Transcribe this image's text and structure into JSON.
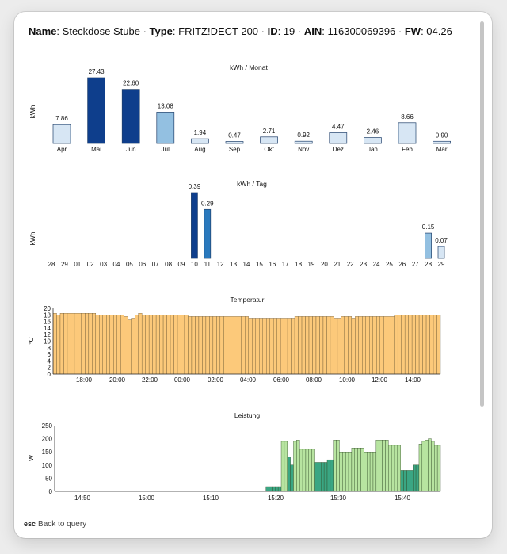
{
  "header": {
    "name_label": "Name",
    "name_value": "Steckdose Stube",
    "type_label": "Type",
    "type_value": "FRITZ!DECT 200",
    "id_label": "ID",
    "id_value": "19",
    "ain_label": "AIN",
    "ain_value": "116300069396",
    "fw_label": "FW",
    "fw_value": "04.26",
    "separator": " · "
  },
  "footer": {
    "key": "esc",
    "label": "Back to query"
  },
  "colors": {
    "blue_dark": "#0e3e8c",
    "blue_mid": "#2a79bd",
    "blue_light": "#93c0e1",
    "blue_pale": "#d7e6f4",
    "temp_fill": "#fcc97a",
    "power_light": "#b7e4a0",
    "power_dark": "#3aa683"
  },
  "chart_data": [
    {
      "type": "bar",
      "title": "kWh / Monat",
      "ylabel": "kWh",
      "categories": [
        "Apr",
        "Mai",
        "Jun",
        "Jul",
        "Aug",
        "Sep",
        "Okt",
        "Nov",
        "Dez",
        "Jan",
        "Feb",
        "Mär"
      ],
      "values": [
        7.86,
        27.43,
        22.6,
        13.08,
        1.94,
        0.47,
        2.71,
        0.92,
        4.47,
        2.46,
        8.66,
        0.9
      ],
      "value_labels": [
        "7.86",
        "27.43",
        "22.60",
        "13.08",
        "1.94",
        "0.47",
        "2.71",
        "0.92",
        "4.47",
        "2.46",
        "8.66",
        "0.90"
      ]
    },
    {
      "type": "bar",
      "title": "kWh / Tag",
      "ylabel": "kWh",
      "categories": [
        "28",
        "29",
        "01",
        "02",
        "03",
        "04",
        "05",
        "06",
        "07",
        "08",
        "09",
        "10",
        "11",
        "12",
        "13",
        "14",
        "15",
        "16",
        "17",
        "18",
        "19",
        "20",
        "21",
        "22",
        "23",
        "24",
        "25",
        "26",
        "27",
        "28",
        "29"
      ],
      "values": [
        0,
        0,
        0,
        0,
        0,
        0,
        0,
        0,
        0,
        0,
        0,
        0.39,
        0.29,
        0,
        0,
        0,
        0,
        0,
        0,
        0,
        0,
        0,
        0,
        0,
        0,
        0,
        0,
        0,
        0,
        0.15,
        0.07
      ],
      "labeled": {
        "11": "0.39",
        "12": "0.29",
        "29": "0.15",
        "30": "0.07"
      }
    },
    {
      "type": "bar",
      "title": "Temperatur",
      "ylabel": "°C",
      "ylim": [
        0,
        20
      ],
      "yticks": [
        "0",
        "2",
        "4",
        "6",
        "8",
        "10",
        "12",
        "14",
        "16",
        "18",
        "20"
      ],
      "xticks": [
        "18:00",
        "20:00",
        "22:00",
        "00:00",
        "02:00",
        "04:00",
        "06:00",
        "08:00",
        "10:00",
        "12:00",
        "14:00"
      ],
      "values": [
        18.5,
        18,
        18.5,
        18.5,
        18.5,
        18.5,
        18.5,
        18.5,
        18.5,
        18.5,
        18.5,
        18.5,
        18,
        18,
        18,
        18,
        18,
        18,
        18,
        18,
        17.5,
        16.5,
        17,
        18,
        18.5,
        18,
        18,
        18,
        18,
        18,
        18,
        18,
        18,
        18,
        18,
        18,
        18,
        18,
        17.5,
        17.5,
        17.5,
        17.5,
        17.5,
        17.5,
        17.5,
        17.5,
        17.5,
        17.5,
        17.5,
        17.5,
        17.5,
        17.5,
        17.5,
        17.5,
        17.5,
        17,
        17,
        17,
        17,
        17,
        17,
        17,
        17,
        17,
        17,
        17,
        17,
        17,
        17.5,
        17.5,
        17.5,
        17.5,
        17.5,
        17.5,
        17.5,
        17.5,
        17.5,
        17.5,
        17.5,
        17,
        17,
        17.5,
        17.5,
        17.5,
        17,
        17.5,
        17.5,
        17.5,
        17.5,
        17.5,
        17.5,
        17.5,
        17.5,
        17.5,
        17.5,
        17.5,
        18,
        18,
        18,
        18,
        18,
        18,
        18,
        18,
        18,
        18,
        18,
        18,
        18
      ]
    },
    {
      "type": "bar",
      "title": "Leistung",
      "ylabel": "W",
      "ylim": [
        0,
        250
      ],
      "yticks": [
        "0",
        "50",
        "100",
        "150",
        "200",
        "250"
      ],
      "xticks": [
        "14:50",
        "15:00",
        "15:10",
        "15:20",
        "15:30",
        "15:40"
      ],
      "leading_zero_count": 69,
      "values": [
        18,
        18,
        18,
        18,
        18,
        190,
        190,
        130,
        100,
        190,
        195,
        160,
        160,
        160,
        160,
        160,
        110,
        110,
        110,
        110,
        120,
        120,
        195,
        195,
        150,
        150,
        150,
        150,
        165,
        165,
        165,
        165,
        150,
        150,
        150,
        150,
        195,
        195,
        195,
        195,
        175,
        175,
        175,
        175,
        80,
        80,
        80,
        80,
        100,
        100,
        180,
        190,
        195,
        200,
        190,
        175,
        175
      ],
      "dark_bar_values": [
        18,
        130,
        100,
        110,
        120,
        80
      ]
    }
  ]
}
